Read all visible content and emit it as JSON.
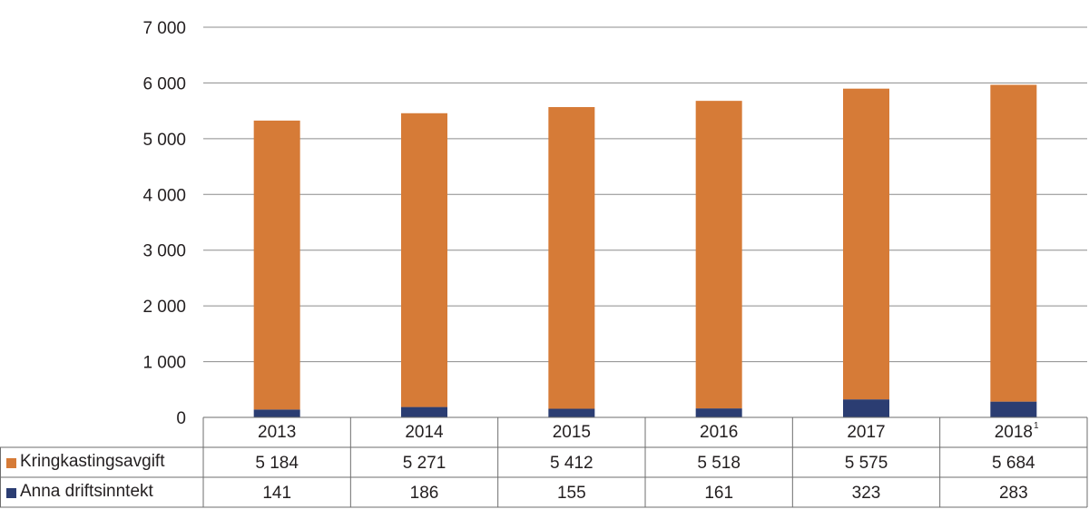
{
  "chart_data": {
    "type": "bar",
    "stacked": true,
    "categories": [
      "2013",
      "2014",
      "2015",
      "2016",
      "2017",
      "2018"
    ],
    "category_footnote": {
      "2018": "1"
    },
    "series": [
      {
        "name": "Kringkastingsavgift",
        "values": [
          5184,
          5271,
          5412,
          5518,
          5575,
          5684
        ],
        "labels": [
          "5 184",
          "5 271",
          "5 412",
          "5 518",
          "5 575",
          "5 684"
        ],
        "color": "#d67b37"
      },
      {
        "name": "Anna driftsinntekt",
        "values": [
          141,
          186,
          155,
          161,
          323,
          283
        ],
        "labels": [
          "141",
          "186",
          "155",
          "161",
          "323",
          "283"
        ],
        "color": "#2b3d72"
      }
    ],
    "ylim": [
      0,
      7000
    ],
    "yticks": [
      0,
      1000,
      2000,
      3000,
      4000,
      5000,
      6000,
      7000
    ],
    "ytick_labels": [
      "0",
      "1 000",
      "2 000",
      "3 000",
      "4 000",
      "5 000",
      "6 000",
      "7 000"
    ],
    "grid": true,
    "legend": "data-table-left",
    "title": "",
    "xlabel": "",
    "ylabel": ""
  }
}
